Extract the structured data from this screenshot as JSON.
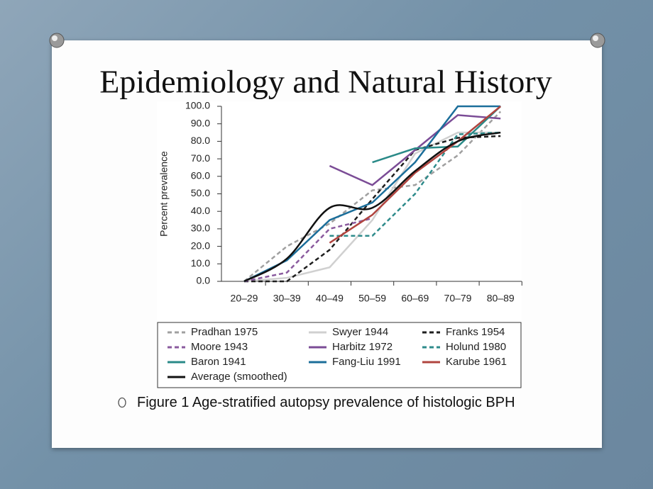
{
  "slide_title": "Epidemiology and Natural History",
  "caption": "Figure 1 Age-stratified autopsy prevalence of histologic BPH",
  "chart_data": {
    "type": "line",
    "y_label": "Percent prevalence",
    "categories": [
      "20–29",
      "30–39",
      "40–49",
      "50–59",
      "60–69",
      "70–79",
      "80–89"
    ],
    "ylim": [
      0,
      100
    ],
    "yticks": [
      {
        "value": 0,
        "label": "0.0"
      },
      {
        "value": 10,
        "label": "10.0"
      },
      {
        "value": 20,
        "label": "20.0"
      },
      {
        "value": 30,
        "label": "30.0"
      },
      {
        "value": 40,
        "label": "40.0"
      },
      {
        "value": 50,
        "label": "50.0"
      },
      {
        "value": 60,
        "label": "60.0"
      },
      {
        "value": 70,
        "label": "70.0"
      },
      {
        "value": 80,
        "label": "80.0"
      },
      {
        "value": 90,
        "label": "90.0"
      },
      {
        "value": 100,
        "label": "100.0"
      }
    ],
    "series": [
      {
        "name": "Pradhan 1975",
        "color": "#a0a0a0",
        "style": "dashed",
        "values": [
          0,
          20,
          33,
          52,
          55,
          72,
          97
        ]
      },
      {
        "name": "Swyer 1944",
        "color": "#d0d0d0",
        "style": "solid",
        "values": [
          0,
          2,
          8,
          35,
          73,
          85,
          85
        ]
      },
      {
        "name": "Franks 1954",
        "color": "#1e1e1e",
        "style": "dashed",
        "values": [
          0,
          0,
          18,
          47,
          75,
          82,
          83
        ]
      },
      {
        "name": "Moore 1943",
        "color": "#8a5a9e",
        "style": "dashed",
        "values": [
          0,
          5,
          30,
          36,
          null,
          null,
          null
        ]
      },
      {
        "name": "Harbitz 1972",
        "color": "#7b4c96",
        "style": "solid",
        "values": [
          null,
          null,
          66,
          55,
          75,
          95,
          93
        ]
      },
      {
        "name": "Holund 1980",
        "color": "#2e8b8b",
        "style": "dashed",
        "values": [
          null,
          null,
          26,
          26,
          50,
          84,
          85
        ]
      },
      {
        "name": "Baron 1941",
        "color": "#2a8a88",
        "style": "solid",
        "values": [
          null,
          null,
          null,
          68,
          76,
          77,
          100
        ]
      },
      {
        "name": "Fang-Liu 1991",
        "color": "#1b6e9a",
        "style": "solid",
        "values": [
          0,
          12,
          35,
          45,
          68,
          100,
          100
        ]
      },
      {
        "name": "Karube 1961",
        "color": "#b0443f",
        "style": "solid",
        "values": [
          null,
          null,
          22,
          38,
          62,
          80,
          100
        ]
      },
      {
        "name": "Average (smoothed)",
        "color": "#111111",
        "style": "smooth",
        "values": [
          0,
          13,
          42,
          42,
          63,
          80,
          85
        ]
      }
    ]
  }
}
